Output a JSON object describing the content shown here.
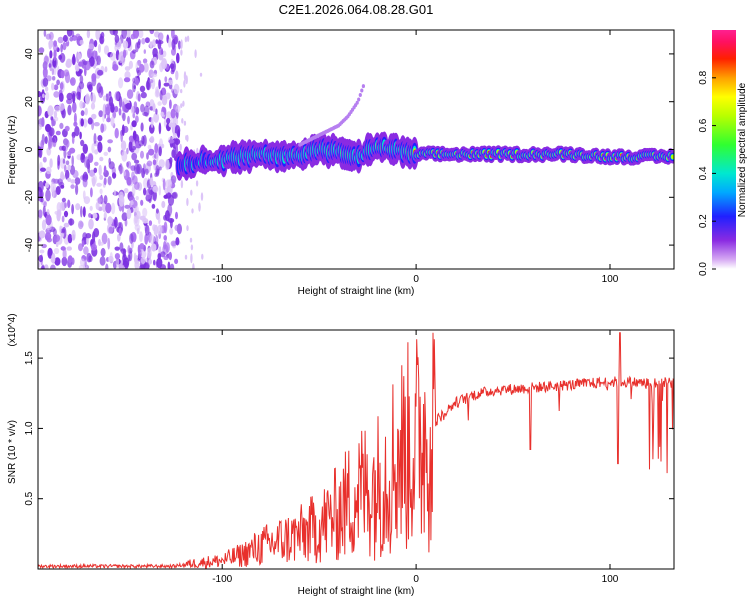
{
  "title": "C2E1.2026.064.08.28.G01",
  "chart_data": [
    {
      "type": "heatmap",
      "title": "C2E1.2026.064.08.28.G01",
      "xlabel": "Height of straight line (km)",
      "ylabel": "Frequency (Hz)",
      "xlim": [
        -195,
        133
      ],
      "ylim": [
        -50,
        50
      ],
      "x_ticks": [
        -100,
        0,
        100
      ],
      "y_ticks": [
        -40,
        -20,
        0,
        20,
        40
      ],
      "colorbar": {
        "label": "Normalized spectral amplitude",
        "range": [
          0,
          1
        ],
        "ticks": [
          "0.0",
          "0.2",
          "0.4",
          "0.6",
          "0.8"
        ]
      },
      "noise_region_x": [
        -195,
        -122
      ],
      "ridge": {
        "x": [
          -122,
          -110,
          -100,
          -90,
          -80,
          -70,
          -60,
          -50,
          -40,
          -30,
          -20,
          -10,
          0,
          10,
          20,
          40,
          60,
          80,
          100,
          120,
          133
        ],
        "freq": [
          -6,
          -5,
          -4,
          -3,
          -2,
          -3,
          -2,
          0,
          -1,
          -3,
          1,
          0,
          -2,
          -2,
          -2,
          -2,
          -2,
          -2,
          -3,
          -3,
          -3
        ],
        "peak_amplitude": [
          0.35,
          0.4,
          0.45,
          0.5,
          0.55,
          0.5,
          0.55,
          0.6,
          0.55,
          0.5,
          0.6,
          0.55,
          0.8,
          0.95,
          1.0,
          0.9,
          0.8,
          0.85,
          0.95,
          0.9,
          0.9
        ]
      },
      "branch": {
        "x": [
          -60,
          -50,
          -40,
          -35,
          -30,
          -27
        ],
        "freq": [
          2,
          6,
          10,
          14,
          20,
          27
        ]
      }
    },
    {
      "type": "line",
      "xlabel": "Height of straight line (km)",
      "ylabel": "SNR (10 * v/v)",
      "y_scale_label": "(x10^4)",
      "xlim": [
        -195,
        133
      ],
      "ylim": [
        0,
        1.7
      ],
      "x_ticks": [
        -100,
        0,
        100
      ],
      "y_ticks": [
        "0.5",
        "1.0",
        "1.5"
      ],
      "series": [
        {
          "name": "SNR",
          "color": "#e8302c",
          "x": [
            -195,
            -150,
            -125,
            -115,
            -100,
            -90,
            -80,
            -70,
            -60,
            -50,
            -40,
            -30,
            -20,
            -10,
            0,
            10,
            20,
            30,
            40,
            50,
            60,
            70,
            80,
            90,
            100,
            110,
            120,
            133
          ],
          "y": [
            0.02,
            0.02,
            0.02,
            0.04,
            0.06,
            0.1,
            0.16,
            0.2,
            0.24,
            0.3,
            0.4,
            0.55,
            0.6,
            0.8,
            0.9,
            1.05,
            1.18,
            1.24,
            1.27,
            1.28,
            1.29,
            1.3,
            1.31,
            1.32,
            1.33,
            1.33,
            1.32,
            1.33
          ]
        }
      ],
      "spikes": [
        {
          "x": 59,
          "y": 0.85
        },
        {
          "x": 104,
          "y": 0.75
        },
        {
          "x": 105,
          "y": 1.68
        }
      ]
    }
  ]
}
